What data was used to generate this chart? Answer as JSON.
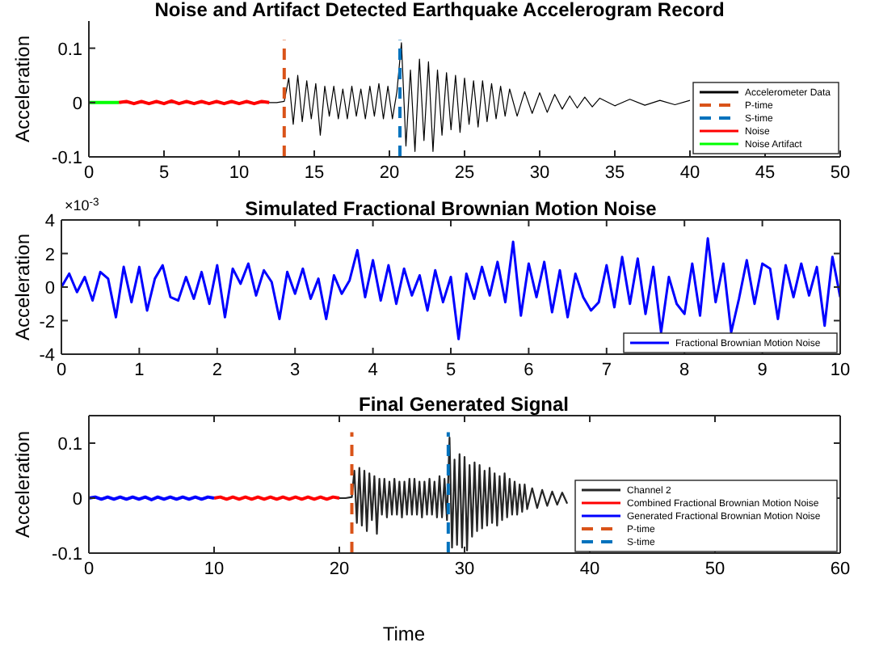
{
  "chart_data": [
    {
      "type": "line",
      "title": "Noise and Artifact Detected Earthquake Accelerogram Record",
      "ylabel": "Acceleration",
      "xlim": [
        0,
        50
      ],
      "xticks": [
        0,
        5,
        10,
        15,
        20,
        25,
        30,
        35,
        40,
        45,
        50
      ],
      "ylim": [
        -0.1,
        0.15
      ],
      "yticks": [
        -0.1,
        0,
        0.1
      ],
      "grid": false,
      "legend": "right",
      "series": [
        {
          "name": "Accelerometer Data",
          "color": "#000000",
          "x": [
            0,
            2,
            4,
            6,
            8,
            10,
            12,
            12.5,
            13,
            13.3,
            13.6,
            13.9,
            14.2,
            14.5,
            14.8,
            15.1,
            15.4,
            15.7,
            16,
            16.3,
            16.6,
            16.9,
            17.2,
            17.5,
            17.8,
            18.1,
            18.4,
            18.7,
            19,
            19.3,
            19.6,
            19.9,
            20.2,
            20.5,
            20.8,
            21.1,
            21.4,
            21.7,
            22,
            22.3,
            22.6,
            22.9,
            23.2,
            23.5,
            23.8,
            24.1,
            24.4,
            24.7,
            25,
            25.3,
            25.6,
            25.9,
            26.2,
            26.5,
            26.8,
            27.1,
            27.4,
            27.7,
            28,
            28.5,
            29,
            29.5,
            30,
            30.5,
            31,
            31.5,
            32,
            32.5,
            33,
            33.5,
            34,
            35,
            36,
            37,
            38,
            39,
            40
          ],
          "values": [
            0,
            0,
            0,
            0,
            0,
            0,
            0,
            0,
            0.002,
            0.045,
            -0.04,
            0.05,
            -0.035,
            0.04,
            -0.03,
            0.035,
            -0.06,
            0.03,
            -0.025,
            0.03,
            -0.03,
            0.025,
            -0.03,
            0.03,
            -0.025,
            0.025,
            -0.03,
            0.03,
            -0.025,
            0.035,
            -0.03,
            0.03,
            -0.03,
            0.02,
            0.11,
            -0.08,
            0.06,
            -0.09,
            0.08,
            -0.07,
            0.075,
            -0.09,
            0.06,
            -0.06,
            0.055,
            -0.05,
            0.05,
            -0.055,
            0.045,
            -0.04,
            0.04,
            -0.045,
            0.04,
            -0.035,
            0.035,
            -0.03,
            0.03,
            -0.025,
            0.025,
            -0.025,
            0.02,
            -0.02,
            0.018,
            -0.018,
            0.015,
            -0.012,
            0.012,
            -0.01,
            0.01,
            -0.008,
            0.008,
            -0.006,
            0.006,
            -0.005,
            0.004,
            -0.004,
            0.004
          ]
        },
        {
          "name": "P-time",
          "color": "#d95319",
          "line_style": "dashed",
          "x": [
            13,
            13
          ],
          "values": [
            -0.1,
            0.115
          ]
        },
        {
          "name": "S-time",
          "color": "#0072bd",
          "line_style": "dashed",
          "x": [
            20.7,
            20.7
          ],
          "values": [
            -0.1,
            0.115
          ]
        },
        {
          "name": "Noise",
          "color": "#ff0000",
          "x": [
            2,
            2.5,
            3,
            3.5,
            4,
            4.5,
            5,
            5.5,
            6,
            6.5,
            7,
            7.5,
            8,
            8.5,
            9,
            9.5,
            10,
            10.5,
            11,
            11.5,
            12
          ],
          "values": [
            0,
            0.002,
            -0.002,
            0.002,
            -0.002,
            0.002,
            -0.002,
            0.003,
            -0.002,
            0.002,
            -0.002,
            0.002,
            -0.002,
            0.002,
            -0.002,
            0.002,
            -0.002,
            0.002,
            -0.002,
            0.002,
            0
          ]
        },
        {
          "name": "Noise Artifact",
          "color": "#00ff00",
          "x": [
            0,
            2
          ],
          "values": [
            0,
            0
          ]
        }
      ]
    },
    {
      "type": "line",
      "title": "Simulated Fractional Brownian Motion Noise",
      "ylabel": "Acceleration",
      "annotations": [
        "×10$^{-3}$"
      ],
      "xlim": [
        0,
        10
      ],
      "xticks": [
        0,
        1,
        2,
        3,
        4,
        5,
        6,
        7,
        8,
        9,
        10
      ],
      "ylim": [
        -4,
        4
      ],
      "yticks": [
        -4,
        -2,
        0,
        2,
        4
      ],
      "grid": false,
      "legend": "bottom right",
      "series": [
        {
          "name": "Fractional Brownian Motion Noise",
          "color": "#0000ff",
          "x": [
            0,
            0.1,
            0.2,
            0.3,
            0.4,
            0.5,
            0.6,
            0.7,
            0.8,
            0.9,
            1,
            1.1,
            1.2,
            1.3,
            1.4,
            1.5,
            1.6,
            1.7,
            1.8,
            1.9,
            2,
            2.1,
            2.2,
            2.3,
            2.4,
            2.5,
            2.6,
            2.7,
            2.8,
            2.9,
            3,
            3.1,
            3.2,
            3.3,
            3.4,
            3.5,
            3.6,
            3.7,
            3.8,
            3.9,
            4,
            4.1,
            4.2,
            4.3,
            4.4,
            4.5,
            4.6,
            4.7,
            4.8,
            4.9,
            5,
            5.1,
            5.2,
            5.3,
            5.4,
            5.5,
            5.6,
            5.7,
            5.8,
            5.9,
            6,
            6.1,
            6.2,
            6.3,
            6.4,
            6.5,
            6.6,
            6.7,
            6.8,
            6.9,
            7,
            7.1,
            7.2,
            7.3,
            7.4,
            7.5,
            7.6,
            7.7,
            7.8,
            7.9,
            8,
            8.1,
            8.2,
            8.3,
            8.4,
            8.5,
            8.6,
            8.7,
            8.8,
            8.9,
            9,
            9.1,
            9.2,
            9.3,
            9.4,
            9.5,
            9.6,
            9.7,
            9.8,
            9.9,
            10
          ],
          "values": [
            0,
            0.8,
            -0.3,
            0.6,
            -0.8,
            0.9,
            0.5,
            -1.8,
            1.2,
            -0.9,
            1.2,
            -1.4,
            0.5,
            1.3,
            -0.6,
            -0.8,
            0.6,
            -0.7,
            0.9,
            -1,
            1.3,
            -1.8,
            1.1,
            0.2,
            1.4,
            -0.5,
            1,
            0.3,
            -1.9,
            0.9,
            -0.4,
            1.1,
            -0.7,
            0.5,
            -1.9,
            0.7,
            -0.4,
            0.4,
            2.2,
            -0.6,
            1.6,
            -0.8,
            1.3,
            -1,
            1.1,
            -0.5,
            0.7,
            -1.4,
            1,
            -0.9,
            0.6,
            -3.1,
            0.8,
            -0.7,
            1.2,
            -0.5,
            1.5,
            -0.9,
            2.7,
            -1.7,
            1.4,
            -0.6,
            1.5,
            -1.5,
            1,
            -1.8,
            0.8,
            -0.6,
            -1.4,
            -0.9,
            1.3,
            -1.2,
            1.8,
            -1,
            1.7,
            -1.6,
            1.2,
            -2.7,
            0.6,
            -1,
            -1.6,
            1.4,
            -1.7,
            2.9,
            -0.9,
            1.4,
            -2.7,
            -0.7,
            1.6,
            -1,
            1.4,
            1.1,
            -1.9,
            1.3,
            -0.6,
            1.4,
            -0.5,
            1.2,
            -2.3,
            1.8,
            -0.6
          ]
        }
      ]
    },
    {
      "type": "line",
      "title": "Final Generated Signal",
      "ylabel": "Acceleration",
      "xlabel": "Time",
      "xlim": [
        0,
        60
      ],
      "xticks": [
        0,
        10,
        20,
        30,
        40,
        50,
        60
      ],
      "ylim": [
        -0.1,
        0.15
      ],
      "yticks": [
        -0.1,
        0,
        0.1
      ],
      "grid": false,
      "legend": "right",
      "series": [
        {
          "name": "Channel 2",
          "color": "#262626",
          "x": [
            20,
            20.5,
            21,
            21.2,
            21.4,
            21.6,
            21.8,
            22,
            22.2,
            22.4,
            22.6,
            22.8,
            23,
            23.2,
            23.4,
            23.6,
            23.8,
            24,
            24.2,
            24.4,
            24.6,
            24.8,
            25,
            25.2,
            25.4,
            25.6,
            25.8,
            26,
            26.2,
            26.4,
            26.6,
            26.8,
            27,
            27.2,
            27.4,
            27.6,
            27.8,
            28,
            28.2,
            28.4,
            28.6,
            28.8,
            29,
            29.2,
            29.4,
            29.6,
            29.8,
            30,
            30.2,
            30.4,
            30.6,
            30.8,
            31,
            31.2,
            31.4,
            31.6,
            31.8,
            32,
            32.2,
            32.4,
            32.6,
            32.8,
            33,
            33.2,
            33.4,
            33.6,
            33.8,
            34,
            34.2,
            34.4,
            34.6,
            34.8,
            35,
            35.4,
            35.8,
            36.2,
            36.6,
            37,
            37.4,
            37.8,
            38.2
          ],
          "values": [
            0,
            0,
            0.002,
            0.05,
            -0.045,
            0.055,
            -0.05,
            0.05,
            -0.06,
            0.045,
            -0.04,
            0.04,
            -0.065,
            0.035,
            -0.03,
            0.035,
            -0.035,
            0.03,
            -0.03,
            0.035,
            -0.03,
            0.03,
            -0.035,
            0.03,
            -0.03,
            0.035,
            -0.03,
            0.035,
            -0.03,
            0.03,
            -0.035,
            0.03,
            -0.03,
            0.035,
            -0.03,
            0.03,
            -0.035,
            0.04,
            -0.035,
            0.035,
            -0.04,
            0.11,
            -0.09,
            0.07,
            -0.085,
            0.08,
            -0.09,
            0.075,
            -0.095,
            0.06,
            -0.07,
            0.065,
            -0.06,
            0.06,
            -0.055,
            0.05,
            -0.05,
            0.055,
            -0.045,
            0.045,
            -0.05,
            0.04,
            -0.04,
            0.045,
            -0.035,
            0.035,
            -0.03,
            0.03,
            -0.03,
            0.025,
            -0.025,
            0.025,
            -0.02,
            0.018,
            -0.018,
            0.015,
            -0.014,
            0.012,
            -0.012,
            0.01,
            -0.01
          ]
        },
        {
          "name": "Combined Fractional Brownian Motion Noise",
          "color": "#ff0000",
          "x": [
            10,
            10.5,
            11,
            11.5,
            12,
            12.5,
            13,
            13.5,
            14,
            14.5,
            15,
            15.5,
            16,
            16.5,
            17,
            17.5,
            18,
            18.5,
            19,
            19.5,
            20
          ],
          "values": [
            0,
            0.002,
            -0.002,
            0.002,
            -0.002,
            0.002,
            -0.002,
            0.002,
            -0.002,
            0.002,
            -0.002,
            0.002,
            -0.002,
            0.002,
            -0.002,
            0.002,
            -0.002,
            0.002,
            -0.002,
            0.002,
            0
          ]
        },
        {
          "name": "Generated Fractional Brownian Motion Noise",
          "color": "#0000ff",
          "x": [
            0,
            0.5,
            1,
            1.5,
            2,
            2.5,
            3,
            3.5,
            4,
            4.5,
            5,
            5.5,
            6,
            6.5,
            7,
            7.5,
            8,
            8.5,
            9,
            9.5,
            10
          ],
          "values": [
            0,
            0.002,
            -0.002,
            0.002,
            -0.002,
            0.002,
            -0.002,
            0.002,
            -0.002,
            0.002,
            -0.003,
            0.002,
            -0.002,
            0.002,
            -0.002,
            0.002,
            -0.002,
            0.002,
            -0.002,
            0.002,
            0
          ]
        },
        {
          "name": "P-time",
          "color": "#d95319",
          "line_style": "dashed",
          "x": [
            21,
            21
          ],
          "values": [
            -0.1,
            0.12
          ]
        },
        {
          "name": "S-time",
          "color": "#0072bd",
          "line_style": "dashed",
          "x": [
            28.7,
            28.7
          ],
          "values": [
            -0.1,
            0.12
          ]
        }
      ]
    }
  ]
}
